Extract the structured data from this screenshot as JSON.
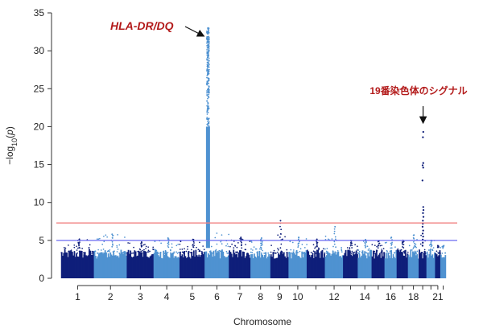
{
  "chart_data": {
    "type": "scatter",
    "subtype": "manhattan",
    "xlabel": "Chromosome",
    "ylabel": "-log10(p)",
    "ylim": [
      0,
      35
    ],
    "yticks": [
      0,
      5,
      10,
      15,
      20,
      25,
      30,
      35
    ],
    "chromosomes": [
      {
        "chr": 1,
        "label": "1",
        "color": "#0f1f7a",
        "peak": 5.1
      },
      {
        "chr": 2,
        "label": "2",
        "color": "#4f92d1",
        "peak": 5.8
      },
      {
        "chr": 3,
        "label": "3",
        "color": "#0f1f7a",
        "peak": 4.7
      },
      {
        "chr": 4,
        "label": "4",
        "color": "#4f92d1",
        "peak": 5.3
      },
      {
        "chr": 5,
        "label": "5",
        "color": "#0f1f7a",
        "peak": 5.1
      },
      {
        "chr": 6,
        "label": "6",
        "color": "#4f92d1",
        "peak": 33.0
      },
      {
        "chr": 7,
        "label": "7",
        "color": "#0f1f7a",
        "peak": 5.4
      },
      {
        "chr": 8,
        "label": "8",
        "color": "#4f92d1",
        "peak": 5.3
      },
      {
        "chr": 9,
        "label": "9",
        "color": "#0f1f7a",
        "peak": 7.6
      },
      {
        "chr": 10,
        "label": "10",
        "color": "#4f92d1",
        "peak": 5.4
      },
      {
        "chr": 11,
        "label": "",
        "color": "#0f1f7a",
        "peak": 5.1
      },
      {
        "chr": 12,
        "label": "12",
        "color": "#4f92d1",
        "peak": 6.8
      },
      {
        "chr": 13,
        "label": "",
        "color": "#0f1f7a",
        "peak": 4.9
      },
      {
        "chr": 14,
        "label": "14",
        "color": "#4f92d1",
        "peak": 5.1
      },
      {
        "chr": 15,
        "label": "",
        "color": "#0f1f7a",
        "peak": 4.9
      },
      {
        "chr": 16,
        "label": "16",
        "color": "#4f92d1",
        "peak": 5.4
      },
      {
        "chr": 17,
        "label": "",
        "color": "#0f1f7a",
        "peak": 5.0
      },
      {
        "chr": 18,
        "label": "18",
        "color": "#4f92d1",
        "peak": 5.7
      },
      {
        "chr": 19,
        "label": "",
        "color": "#0f1f7a",
        "peak": 19.3
      },
      {
        "chr": 20,
        "label": "",
        "color": "#4f92d1",
        "peak": 5.0
      },
      {
        "chr": 21,
        "label": "21",
        "color": "#0f1f7a",
        "peak": 4.2
      },
      {
        "chr": 22,
        "label": "",
        "color": "#4f92d1",
        "peak": 4.2
      }
    ],
    "thresholds": [
      {
        "value": 7.3,
        "color": "#f08080"
      },
      {
        "value": 5.0,
        "color": "#6a6af0"
      }
    ],
    "annotations": [
      {
        "text": "HLA-DR/DQ",
        "chr": 6,
        "value": 33.0
      },
      {
        "text": "19番染色体のシグナル",
        "chr": 19,
        "value": 19.3
      }
    ]
  }
}
